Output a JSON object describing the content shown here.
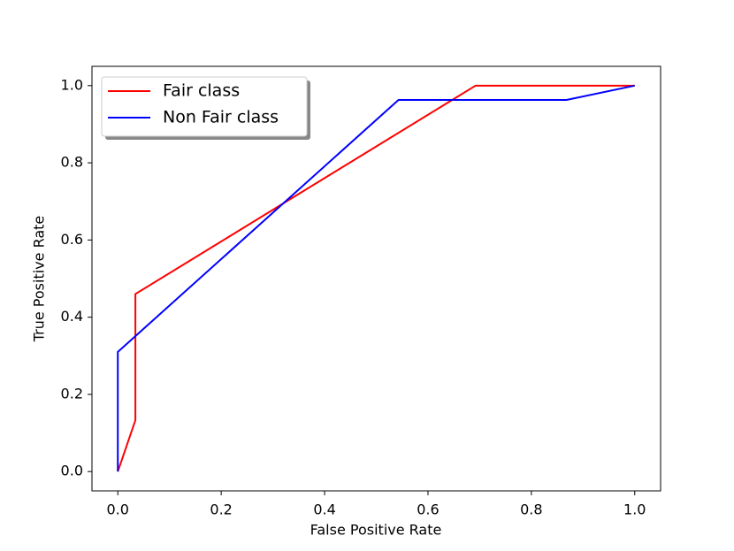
{
  "chart_data": {
    "type": "line",
    "xlabel": "False Positive Rate",
    "ylabel": "True Positive Rate",
    "series": [
      {
        "name": "Fair class",
        "color": "#ff0000",
        "x": [
          0,
          0.034,
          0.034,
          0.692,
          1.0
        ],
        "values": [
          0,
          0.133,
          0.46,
          1.0,
          1.0
        ]
      },
      {
        "name": "Non Fair class",
        "color": "#0000ff",
        "x": [
          0,
          0,
          0.543,
          0.868,
          1.0
        ],
        "values": [
          0,
          0.31,
          0.963,
          0.963,
          1.0
        ]
      }
    ],
    "xlim": [
      -0.05,
      1.05
    ],
    "ylim": [
      -0.05,
      1.05
    ],
    "xticks": [
      {
        "value": 0,
        "label": "0.0"
      },
      0.2,
      0.4,
      0.6,
      0.8,
      {
        "value": 1,
        "label": "1.0"
      }
    ],
    "yticks": [
      {
        "value": 0,
        "label": "0.0"
      },
      0.2,
      0.4,
      0.6,
      0.8,
      {
        "value": 1,
        "label": "1.0"
      }
    ],
    "legend": "upper left"
  }
}
